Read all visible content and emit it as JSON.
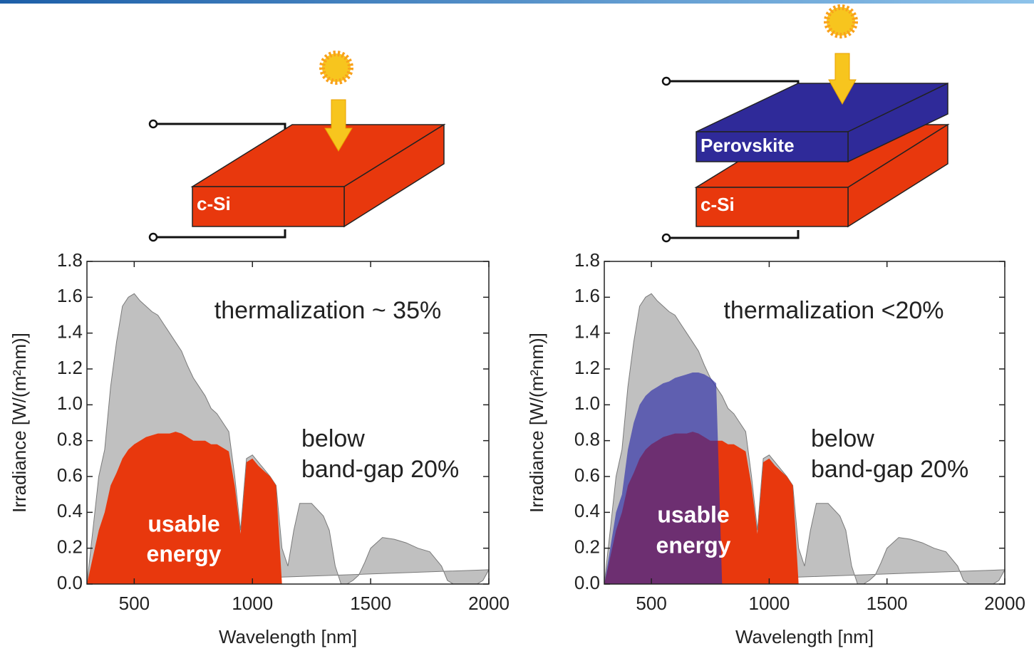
{
  "diagrams": [
    {
      "layers": [
        "c-Si"
      ]
    },
    {
      "layers": [
        "Perovskite",
        "c-Si"
      ]
    }
  ],
  "chart_data": [
    {
      "type": "area",
      "xlabel": "Wavelength [nm]",
      "ylabel": "Irradiance [W/(m²nm)]",
      "annotations": [
        "thermalization ~ 35%",
        "below",
        "band-gap 20%",
        "usable",
        "energy"
      ],
      "x": [
        300,
        325,
        350,
        375,
        400,
        425,
        450,
        475,
        500,
        525,
        550,
        575,
        600,
        625,
        650,
        675,
        700,
        725,
        750,
        775,
        800,
        825,
        850,
        875,
        900,
        925,
        950,
        975,
        1000,
        1025,
        1050,
        1075,
        1100,
        1125,
        1150,
        1175,
        1200,
        1250,
        1300,
        1325,
        1350,
        1375,
        1400,
        1425,
        1450,
        1475,
        1500,
        1550,
        1600,
        1650,
        1700,
        1750,
        1800,
        1825,
        1850,
        1900,
        1950,
        1975,
        2000
      ],
      "series": [
        {
          "color": "#c0c0c0",
          "values": [
            0,
            0.3,
            0.6,
            0.75,
            1.1,
            1.35,
            1.55,
            1.6,
            1.62,
            1.58,
            1.55,
            1.52,
            1.5,
            1.45,
            1.4,
            1.35,
            1.3,
            1.22,
            1.15,
            1.1,
            1.05,
            0.98,
            0.95,
            0.9,
            0.85,
            0.6,
            0.3,
            0.7,
            0.72,
            0.68,
            0.64,
            0.6,
            0.55,
            0.2,
            0.1,
            0.3,
            0.45,
            0.45,
            0.38,
            0.3,
            0.1,
            0,
            0,
            0.02,
            0.05,
            0.12,
            0.2,
            0.26,
            0.25,
            0.23,
            0.2,
            0.18,
            0.1,
            0.02,
            0,
            0,
            0,
            0.02,
            0.08
          ]
        },
        {
          "color": "#e8380d",
          "values": [
            0,
            0.15,
            0.3,
            0.4,
            0.55,
            0.62,
            0.7,
            0.75,
            0.78,
            0.8,
            0.82,
            0.83,
            0.84,
            0.84,
            0.84,
            0.85,
            0.84,
            0.82,
            0.8,
            0.8,
            0.8,
            0.78,
            0.78,
            0.76,
            0.74,
            0.55,
            0.28,
            0.68,
            0.7,
            0.66,
            0.63,
            0.6,
            0.55,
            0,
            null,
            null,
            null,
            null,
            null,
            null,
            null,
            null,
            null,
            null,
            null,
            null,
            null,
            null,
            null,
            null,
            null,
            null,
            null,
            null,
            null,
            null,
            null,
            null,
            null
          ]
        }
      ],
      "xlim": [
        300,
        2000
      ],
      "xticks": [
        500,
        1000,
        1500,
        2000
      ],
      "ylim": [
        0,
        1.8
      ],
      "yticks": [
        {
          "value": 0,
          "label": "0.0"
        },
        0.2,
        0.4,
        0.6,
        0.8,
        {
          "value": 1,
          "label": "1.0"
        },
        1.2,
        1.4,
        1.6,
        1.8
      ]
    },
    {
      "type": "area",
      "xlabel": "Wavelength [nm]",
      "ylabel": "Irradiance [W/(m²nm)]",
      "annotations": [
        "thermalization <20%",
        "below",
        "band-gap 20%",
        "usable",
        "energy"
      ],
      "x": [
        300,
        325,
        350,
        375,
        400,
        425,
        450,
        475,
        500,
        525,
        550,
        575,
        600,
        625,
        650,
        675,
        700,
        725,
        750,
        775,
        800,
        825,
        850,
        875,
        900,
        925,
        950,
        975,
        1000,
        1025,
        1050,
        1075,
        1100,
        1125,
        1150,
        1175,
        1200,
        1250,
        1300,
        1325,
        1350,
        1375,
        1400,
        1425,
        1450,
        1475,
        1500,
        1550,
        1600,
        1650,
        1700,
        1750,
        1800,
        1825,
        1850,
        1900,
        1950,
        1975,
        2000
      ],
      "series": [
        {
          "color": "#c0c0c0",
          "values": [
            0,
            0.3,
            0.6,
            0.75,
            1.1,
            1.35,
            1.55,
            1.6,
            1.62,
            1.58,
            1.55,
            1.52,
            1.5,
            1.45,
            1.4,
            1.35,
            1.3,
            1.22,
            1.15,
            1.1,
            1.05,
            0.98,
            0.95,
            0.9,
            0.85,
            0.6,
            0.3,
            0.7,
            0.72,
            0.68,
            0.64,
            0.6,
            0.55,
            0.2,
            0.1,
            0.3,
            0.45,
            0.45,
            0.38,
            0.3,
            0.1,
            0,
            0,
            0.02,
            0.05,
            0.12,
            0.2,
            0.26,
            0.25,
            0.23,
            0.2,
            0.18,
            0.1,
            0.02,
            0,
            0,
            0,
            0.02,
            0.08
          ]
        },
        {
          "color": "#e8380d",
          "values": [
            0,
            0.15,
            0.3,
            0.4,
            0.55,
            0.62,
            0.7,
            0.75,
            0.78,
            0.8,
            0.82,
            0.83,
            0.84,
            0.84,
            0.84,
            0.85,
            0.84,
            0.82,
            0.8,
            0.8,
            0.8,
            0.78,
            0.78,
            0.76,
            0.74,
            0.55,
            0.28,
            0.68,
            0.7,
            0.66,
            0.63,
            0.6,
            0.55,
            0,
            null,
            null,
            null,
            null,
            null,
            null,
            null,
            null,
            null,
            null,
            null,
            null,
            null,
            null,
            null,
            null,
            null,
            null,
            null,
            null,
            null,
            null,
            null,
            null,
            null
          ]
        },
        {
          "color": "#2b2ba8",
          "values": [
            0,
            0.2,
            0.4,
            0.5,
            0.75,
            0.9,
            1,
            1.05,
            1.08,
            1.1,
            1.12,
            1.13,
            1.15,
            1.16,
            1.17,
            1.18,
            1.18,
            1.17,
            1.15,
            1.12,
            0,
            null,
            null,
            null,
            null,
            null,
            null,
            null,
            null,
            null,
            null,
            null,
            null,
            null,
            null,
            null,
            null,
            null,
            null,
            null,
            null,
            null,
            null,
            null,
            null,
            null,
            null,
            null,
            null,
            null,
            null,
            null,
            null,
            null,
            null,
            null,
            null,
            null,
            null
          ]
        }
      ],
      "xlim": [
        300,
        2000
      ],
      "xticks": [
        500,
        1000,
        1500,
        2000
      ],
      "ylim": [
        0,
        1.8
      ],
      "yticks": [
        {
          "value": 0,
          "label": "0.0"
        },
        0.2,
        0.4,
        0.6,
        0.8,
        {
          "value": 1,
          "label": "1.0"
        },
        1.2,
        1.4,
        1.6,
        1.8
      ]
    }
  ]
}
